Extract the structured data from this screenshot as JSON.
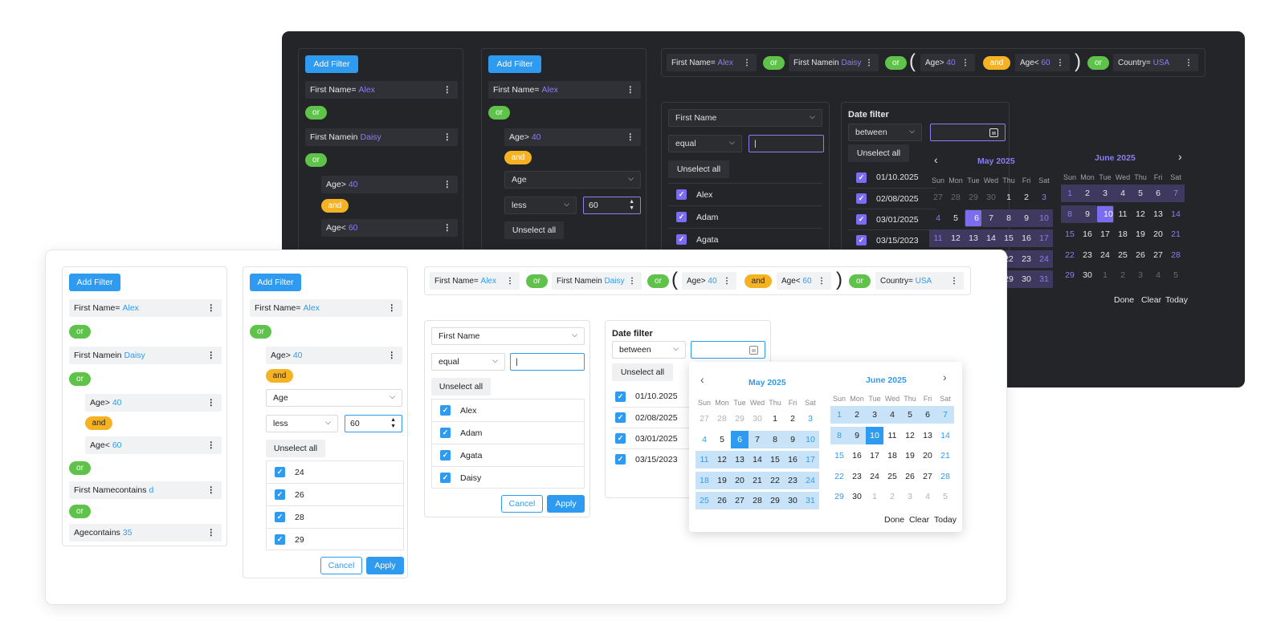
{
  "common": {
    "add_filter": "Add Filter",
    "or": "or",
    "and": "and",
    "dots": "⋮",
    "unselect_all": "Unselect all",
    "cancel": "Cancel",
    "apply": "Apply",
    "date_filter": "Date filter",
    "between": "between",
    "first_name_select": "First Name",
    "equal": "equal",
    "age_select": "Age",
    "less": "less",
    "age_value": "60",
    "done": "Done",
    "clear": "Clear",
    "today": "Today",
    "may": "May 2025",
    "june": "June 2025",
    "weekdays": [
      "Sun",
      "Mon",
      "Tue",
      "Wed",
      "Thu",
      "Fri",
      "Sat"
    ]
  },
  "rules": {
    "first_name": "First Name",
    "eq": " =",
    "alex": "Alex",
    "in": " in",
    "daisy": "Daisy",
    "age": "Age",
    "gt": " >",
    "lt": " <",
    "forty": "40",
    "sixty": "60",
    "contains": " contains",
    "d": "d",
    "thirtyfive": "35",
    "country": "Country",
    "usa": "USA"
  },
  "names_list": [
    "Alex",
    "Adam",
    "Agata",
    "Daisy"
  ],
  "age_list": [
    "24",
    "26",
    "28",
    "29"
  ],
  "dates_list": [
    "01/10.2025",
    "02/08/2025",
    "03/01/2025",
    "03/15/2023"
  ],
  "may_days": [
    [
      "27",
      "28",
      "29",
      "30",
      "1",
      "2",
      "3"
    ],
    [
      "4",
      "5",
      "6",
      "7",
      "8",
      "9",
      "10"
    ],
    [
      "11",
      "12",
      "13",
      "14",
      "15",
      "16",
      "17"
    ],
    [
      "18",
      "19",
      "20",
      "21",
      "22",
      "23",
      "24"
    ],
    [
      "25",
      "26",
      "27",
      "28",
      "29",
      "30",
      "31"
    ]
  ],
  "june_days": [
    [
      "1",
      "2",
      "3",
      "4",
      "5",
      "6",
      "7"
    ],
    [
      "8",
      "9",
      "10",
      "11",
      "12",
      "13",
      "14"
    ],
    [
      "15",
      "16",
      "17",
      "18",
      "19",
      "20",
      "21"
    ],
    [
      "22",
      "23",
      "24",
      "25",
      "26",
      "27",
      "28"
    ],
    [
      "29",
      "30",
      "1",
      "2",
      "3",
      "4",
      "5"
    ]
  ],
  "colors": {
    "dark_bg": "#242528",
    "dark_accent": "#7b6cf0",
    "light_accent": "#2f9bf0",
    "or_green": "#5fc24a",
    "and_orange": "#f5b324"
  }
}
